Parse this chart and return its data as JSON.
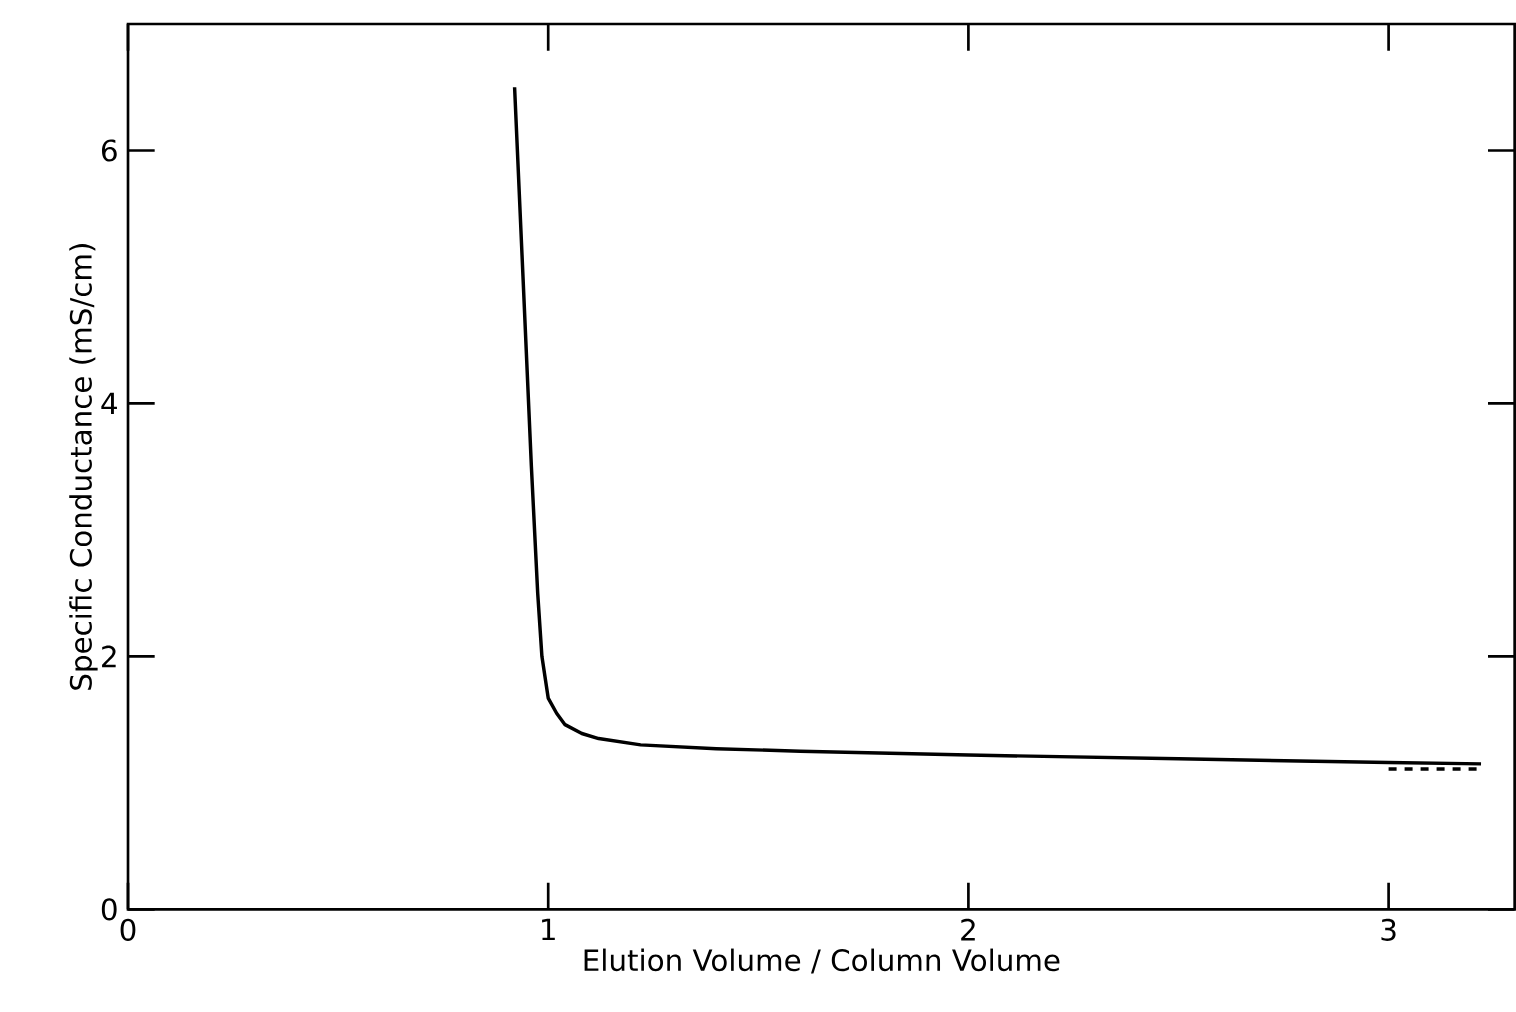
{
  "chart_data": {
    "type": "line",
    "xlabel": "Elution Volume / Column Volume",
    "ylabel": "Specific Conductance (mS/cm)",
    "xlim": [
      0,
      3.3
    ],
    "ylim": [
      0,
      7
    ],
    "xticks": [
      0,
      1,
      2,
      3
    ],
    "yticks": [
      0,
      2,
      4,
      6
    ],
    "series": [
      {
        "color": "#000000",
        "line_style": "solid",
        "x": [
          0.92,
          0.94,
          0.96,
          0.975,
          0.985,
          1.0,
          1.02,
          1.04,
          1.08,
          1.12,
          1.22,
          1.4,
          1.6,
          2.0,
          2.5,
          3.0,
          3.22
        ],
        "values": [
          6.5,
          5.0,
          3.5,
          2.5,
          2.0,
          1.67,
          1.55,
          1.46,
          1.39,
          1.35,
          1.3,
          1.27,
          1.25,
          1.22,
          1.19,
          1.16,
          1.15
        ]
      },
      {
        "color": "#000000",
        "line_style": "dashed",
        "x": [
          3.0,
          3.22
        ],
        "values": [
          1.11,
          1.11
        ]
      }
    ]
  }
}
